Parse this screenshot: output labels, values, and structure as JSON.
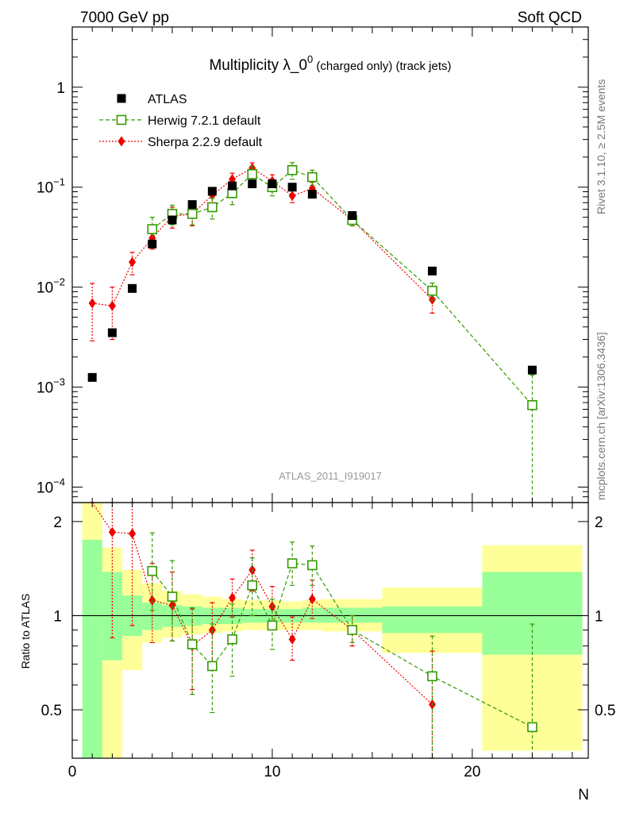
{
  "header": {
    "left": "7000 GeV pp",
    "right": "Soft QCD"
  },
  "side_text": {
    "rivet": "Rivet 3.1.10, ≥ 2.5M events",
    "mcplots": "mcplots.cern.ch [arXiv:1306.3436]"
  },
  "chart_data": {
    "type": "scatter",
    "title_main": "Multiplicity λ_0",
    "title_sup": "0",
    "title_sub": " (charged only) (track jets)",
    "watermark": "ATLAS_2011_I919017",
    "xlabel": "N",
    "ylabel_ratio": "Ratio to ATLAS",
    "xlim": [
      0,
      25.8
    ],
    "ylim_main": [
      7e-05,
      4
    ],
    "ylog_main": true,
    "ylim_ratio": [
      0.35,
      2.3
    ],
    "ylog_ratio": true,
    "x_ticks": [
      "0",
      "10",
      "20"
    ],
    "y_ticks_main": [
      {
        "mant": "10",
        "exp": "−4"
      },
      {
        "mant": "10",
        "exp": "−3"
      },
      {
        "mant": "10",
        "exp": "−2"
      },
      {
        "mant": "10",
        "exp": "−1"
      },
      {
        "mant": "1",
        "exp": ""
      }
    ],
    "y_ticks_ratio": [
      "0.5",
      "1",
      "2"
    ],
    "legend_position": "top-left",
    "series": [
      {
        "name": "ATLAS",
        "color": "#000000",
        "marker": "filled-square",
        "x": [
          1,
          2,
          3,
          4,
          5,
          6,
          7,
          8,
          9,
          10,
          11,
          12,
          14,
          18,
          23
        ],
        "y": [
          0.00125,
          0.0035,
          0.0097,
          0.027,
          0.047,
          0.067,
          0.091,
          0.103,
          0.108,
          0.108,
          0.1,
          0.085,
          0.052,
          0.0145,
          0.00148
        ]
      },
      {
        "name": "Herwig 7.2.1 default",
        "color": "#339900",
        "marker": "open-square",
        "line": "dashed",
        "x": [
          4,
          5,
          6,
          7,
          8,
          9,
          10,
          11,
          12,
          14,
          18,
          23
        ],
        "y": [
          0.038,
          0.054,
          0.054,
          0.063,
          0.087,
          0.135,
          0.1,
          0.148,
          0.126,
          0.047,
          0.0092,
          0.00066
        ],
        "yerr": [
          0.012,
          0.012,
          0.012,
          0.015,
          0.02,
          0.028,
          0.018,
          0.028,
          0.022,
          0.006,
          0.0018,
          0.00066
        ]
      },
      {
        "name": "Sherpa 2.2.9 default",
        "color": "#ee0000",
        "marker": "diamond",
        "line": "dotted",
        "x": [
          1,
          2,
          3,
          4,
          5,
          6,
          7,
          8,
          9,
          10,
          11,
          12,
          14,
          18
        ],
        "y": [
          0.0069,
          0.0065,
          0.0178,
          0.031,
          0.051,
          0.054,
          0.083,
          0.12,
          0.155,
          0.115,
          0.082,
          0.097,
          0.047,
          0.0075
        ],
        "yerr": [
          0.004,
          0.0035,
          0.0045,
          0.007,
          0.012,
          0.013,
          0.016,
          0.018,
          0.02,
          0.018,
          0.012,
          0.015,
          0.006,
          0.002
        ]
      }
    ],
    "ratio_series": [
      {
        "name": "Herwig 7.2.1 default",
        "x": [
          4,
          5,
          6,
          7,
          8,
          9,
          10,
          11,
          12,
          14,
          18,
          23
        ],
        "y": [
          1.39,
          1.15,
          0.81,
          0.69,
          0.84,
          1.25,
          0.93,
          1.47,
          1.45,
          0.9,
          0.64,
          0.44
        ],
        "err_lo": [
          0.35,
          0.32,
          0.25,
          0.2,
          0.2,
          0.25,
          0.15,
          0.22,
          0.2,
          0.08,
          0.3,
          0.44
        ],
        "err_hi": [
          0.45,
          0.35,
          0.25,
          0.25,
          0.25,
          0.28,
          0.2,
          0.25,
          0.22,
          0.1,
          0.22,
          0.5
        ]
      },
      {
        "name": "Sherpa 2.2.9 default",
        "x": [
          1,
          2,
          3,
          4,
          5,
          6,
          7,
          8,
          9,
          10,
          11,
          12,
          14,
          18
        ],
        "y": [
          5.5,
          1.85,
          1.83,
          1.12,
          1.08,
          0.8,
          0.9,
          1.14,
          1.4,
          1.07,
          0.84,
          1.13,
          0.9,
          0.52
        ],
        "err_lo": [
          3.0,
          1.0,
          0.9,
          0.3,
          0.25,
          0.22,
          0.2,
          0.15,
          0.2,
          0.15,
          0.12,
          0.15,
          0.1,
          0.2
        ],
        "err_hi": [
          3.0,
          1.0,
          0.9,
          0.35,
          0.3,
          0.25,
          0.2,
          0.17,
          0.22,
          0.17,
          0.15,
          0.17,
          0.1,
          0.25
        ]
      }
    ],
    "ratio_bands": [
      {
        "x0": 0.5,
        "x1": 1.5,
        "y_lo": 0.3,
        "y_hi": 2.5,
        "g_lo": 0.3,
        "g_hi": 1.75
      },
      {
        "x0": 1.5,
        "x1": 2.5,
        "y_lo": 0.3,
        "y_hi": 1.65,
        "g_lo": 0.72,
        "g_hi": 1.38
      },
      {
        "x0": 2.5,
        "x1": 3.5,
        "y_lo": 0.67,
        "y_hi": 1.4,
        "g_lo": 0.86,
        "g_hi": 1.16
      },
      {
        "x0": 3.5,
        "x1": 4.5,
        "y_lo": 0.82,
        "y_hi": 1.27,
        "g_lo": 0.9,
        "g_hi": 1.1
      },
      {
        "x0": 4.5,
        "x1": 5.5,
        "y_lo": 0.85,
        "y_hi": 1.2,
        "g_lo": 0.92,
        "g_hi": 1.08
      },
      {
        "x0": 5.5,
        "x1": 6.5,
        "y_lo": 0.87,
        "y_hi": 1.17,
        "g_lo": 0.93,
        "g_hi": 1.07
      },
      {
        "x0": 6.5,
        "x1": 7.5,
        "y_lo": 0.88,
        "y_hi": 1.15,
        "g_lo": 0.94,
        "g_hi": 1.06
      },
      {
        "x0": 7.5,
        "x1": 8.5,
        "y_lo": 0.89,
        "y_hi": 1.13,
        "g_lo": 0.94,
        "g_hi": 1.06
      },
      {
        "x0": 8.5,
        "x1": 10.5,
        "y_lo": 0.9,
        "y_hi": 1.12,
        "g_lo": 0.95,
        "g_hi": 1.05
      },
      {
        "x0": 10.5,
        "x1": 11.5,
        "y_lo": 0.9,
        "y_hi": 1.11,
        "g_lo": 0.95,
        "g_hi": 1.05
      },
      {
        "x0": 11.5,
        "x1": 12.5,
        "y_lo": 0.9,
        "y_hi": 1.12,
        "g_lo": 0.95,
        "g_hi": 1.06
      },
      {
        "x0": 12.5,
        "x1": 15.5,
        "y_lo": 0.89,
        "y_hi": 1.13,
        "g_lo": 0.95,
        "g_hi": 1.06
      },
      {
        "x0": 15.5,
        "x1": 20.5,
        "y_lo": 0.76,
        "y_hi": 1.23,
        "g_lo": 0.88,
        "g_hi": 1.07
      },
      {
        "x0": 20.5,
        "x1": 25.5,
        "y_lo": 0.37,
        "y_hi": 1.68,
        "g_lo": 0.75,
        "g_hi": 1.38
      }
    ],
    "band_colors": {
      "yellow": "#ffff99",
      "green": "#99ff99"
    },
    "grid": false
  }
}
